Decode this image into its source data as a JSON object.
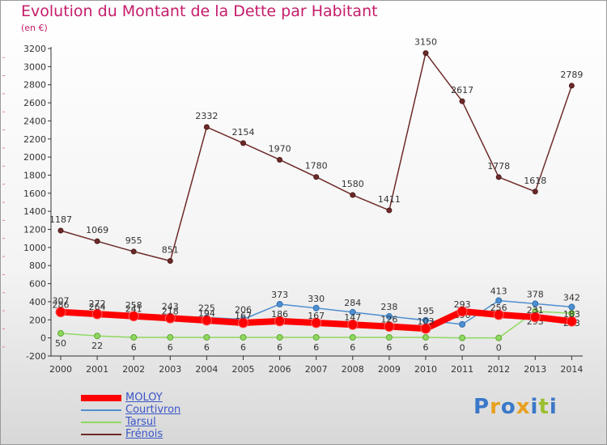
{
  "header": {
    "title": "Evolution du Montant de la Dette par Habitant",
    "unit": "(en €)"
  },
  "chart_data": {
    "type": "line",
    "title": "Evolution du Montant de la Dette par Habitant",
    "ylabel": "(en €)",
    "xlabel": "",
    "ylim": [
      -200,
      3200
    ],
    "yticks": [
      -200,
      0,
      200,
      400,
      600,
      800,
      1000,
      1200,
      1400,
      1600,
      1800,
      2000,
      2200,
      2400,
      2600,
      2800,
      3000,
      3200
    ],
    "grid": false,
    "x": [
      "2000",
      "2001",
      "2002",
      "2003",
      "2004",
      "2005",
      "2006",
      "2007",
      "2008",
      "2009",
      "2010",
      "2011",
      "2012",
      "2013",
      "2014"
    ],
    "series": [
      {
        "name": "Frénois",
        "color": "#6e2a2a",
        "values": [
          1187,
          1069,
          955,
          851,
          2332,
          2154,
          1970,
          1780,
          1580,
          1411,
          3150,
          2617,
          1778,
          1618,
          2789
        ]
      },
      {
        "name": "Courtivron",
        "color": "#4f8fd0",
        "values": [
          307,
          272,
          258,
          243,
          225,
          206,
          373,
          330,
          284,
          238,
          195,
          150,
          413,
          378,
          342
        ]
      },
      {
        "name": "Tarsul",
        "color": "#8fd860",
        "values": [
          50,
          22,
          6,
          6,
          6,
          6,
          6,
          6,
          6,
          6,
          6,
          0,
          0,
          293,
          273
        ]
      },
      {
        "name": "MOLOY",
        "color": "#ff0000",
        "values": [
          286,
          264,
          241,
          218,
          194,
          167,
          186,
          167,
          147,
          126,
          103,
          293,
          256,
          231,
          183
        ]
      }
    ]
  },
  "legend": {
    "items": [
      {
        "label": "MOLOY",
        "color": "#ff0000",
        "thickness": 8
      },
      {
        "label": "Courtivron",
        "color": "#4f8fd0",
        "thickness": 2
      },
      {
        "label": "Tarsul",
        "color": "#8fd860",
        "thickness": 2
      },
      {
        "label": "Frénois",
        "color": "#6e2a2a",
        "thickness": 2
      }
    ]
  },
  "brand": {
    "letters": [
      "P",
      "r",
      "o",
      "x",
      "i",
      "t",
      "i"
    ],
    "colors": [
      "#3a78c8",
      "#e8a020",
      "#3a78c8",
      "#e8a020",
      "#3a78c8",
      "#9ac030",
      "#3a78c8"
    ]
  }
}
